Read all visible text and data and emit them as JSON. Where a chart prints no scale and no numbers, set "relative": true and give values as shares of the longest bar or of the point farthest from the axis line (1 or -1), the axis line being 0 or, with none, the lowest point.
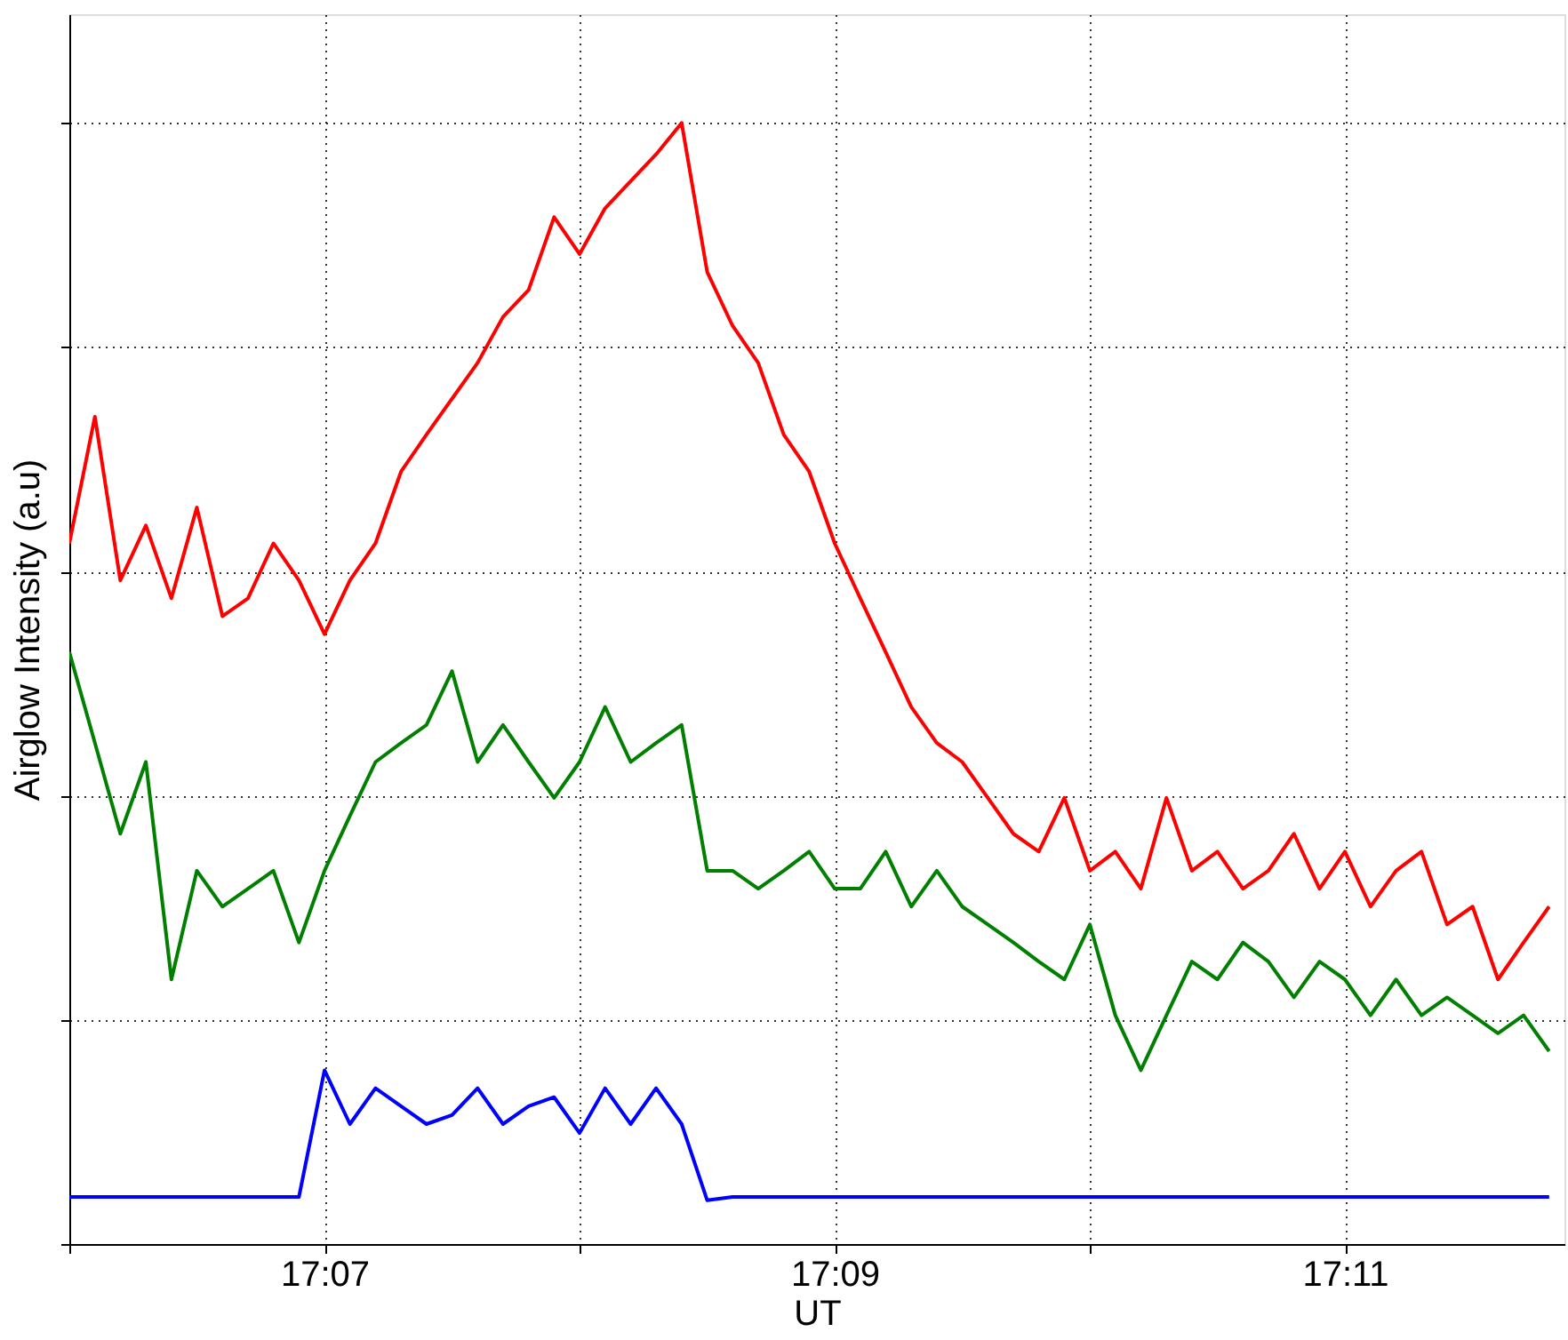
{
  "chart_data": {
    "type": "line",
    "xlabel": "UT",
    "ylabel": "Airglow Intensity (a.u)",
    "relative": true,
    "grid": true,
    "line_style": "solid",
    "marker": "none",
    "x": [
      17.1,
      17.10167,
      17.10333,
      17.105,
      17.10667,
      17.10833,
      17.11,
      17.11167,
      17.11333,
      17.115,
      17.11667,
      17.11833,
      17.12,
      17.12167,
      17.12333,
      17.125,
      17.12667,
      17.12833,
      17.13,
      17.13167,
      17.13333,
      17.135,
      17.13667,
      17.13833,
      17.14,
      17.14167,
      17.14333,
      17.145,
      17.14667,
      17.14833,
      17.15,
      17.15167,
      17.15333,
      17.155,
      17.15667,
      17.15833,
      17.16,
      17.16167,
      17.16333,
      17.165,
      17.16667,
      17.16833,
      17.17,
      17.17167,
      17.17333,
      17.175,
      17.17667,
      17.17833,
      17.18,
      17.18167,
      17.18333,
      17.185,
      17.18667,
      17.18833,
      17.19,
      17.19167,
      17.19333,
      17.195,
      17.19667
    ],
    "xlim": [
      17.1,
      17.19767
    ],
    "xticks": [
      {
        "value": 17.1,
        "label": null
      },
      {
        "value": 17.11667,
        "label": "17:07"
      },
      {
        "value": 17.13333,
        "label": null
      },
      {
        "value": 17.15,
        "label": "17:09"
      },
      {
        "value": 17.16667,
        "label": null
      },
      {
        "value": 17.18333,
        "label": "17:11"
      }
    ],
    "series": [
      {
        "color": "#ff0000",
        "values": [
          0.625,
          0.738,
          0.592,
          0.641,
          0.576,
          0.657,
          0.56,
          0.576,
          0.625,
          0.592,
          0.544,
          0.592,
          0.625,
          0.689,
          0.722,
          0.754,
          0.786,
          0.827,
          0.851,
          0.916,
          0.883,
          0.924,
          0.948,
          0.972,
          1.0,
          0.867,
          0.819,
          0.786,
          0.722,
          0.689,
          0.625,
          0.576,
          0.528,
          0.479,
          0.447,
          0.43,
          0.398,
          0.366,
          0.35,
          0.398,
          0.333,
          0.35,
          0.317,
          0.398,
          0.333,
          0.35,
          0.317,
          0.333,
          0.366,
          0.317,
          0.35,
          0.301,
          0.333,
          0.35,
          0.285,
          0.301,
          0.236,
          0.269,
          0.301
        ]
      },
      {
        "color": "#007f00",
        "values": [
          0.528,
          0.447,
          0.366,
          0.43,
          0.236,
          0.333,
          0.301,
          0.317,
          0.333,
          0.269,
          0.333,
          0.382,
          0.43,
          0.447,
          0.463,
          0.511,
          0.43,
          0.463,
          0.43,
          0.398,
          0.43,
          0.479,
          0.43,
          0.447,
          0.463,
          0.333,
          0.333,
          0.317,
          0.333,
          0.35,
          0.317,
          0.317,
          0.35,
          0.301,
          0.333,
          0.301,
          0.285,
          0.269,
          0.252,
          0.236,
          0.285,
          0.204,
          0.155,
          0.204,
          0.252,
          0.236,
          0.269,
          0.252,
          0.22,
          0.252,
          0.236,
          0.204,
          0.236,
          0.204,
          0.22,
          0.204,
          0.188,
          0.204,
          0.172
        ]
      },
      {
        "color": "#0000ff",
        "values": [
          0.042,
          0.042,
          0.042,
          0.042,
          0.042,
          0.042,
          0.042,
          0.042,
          0.042,
          0.042,
          0.155,
          0.107,
          0.139,
          0.123,
          0.107,
          0.115,
          0.139,
          0.107,
          0.123,
          0.131,
          0.099,
          0.139,
          0.107,
          0.139,
          0.107,
          0.039,
          0.042,
          0.042,
          0.042,
          0.042,
          0.042,
          0.042,
          0.042,
          0.042,
          0.042,
          0.042,
          0.042,
          0.042,
          0.042,
          0.042,
          0.042,
          0.042,
          0.042,
          0.042,
          0.042,
          0.042,
          0.042,
          0.042,
          0.042,
          0.042,
          0.042,
          0.042,
          0.042,
          0.042,
          0.042,
          0.042,
          0.042,
          0.042,
          0.042
        ]
      }
    ]
  }
}
